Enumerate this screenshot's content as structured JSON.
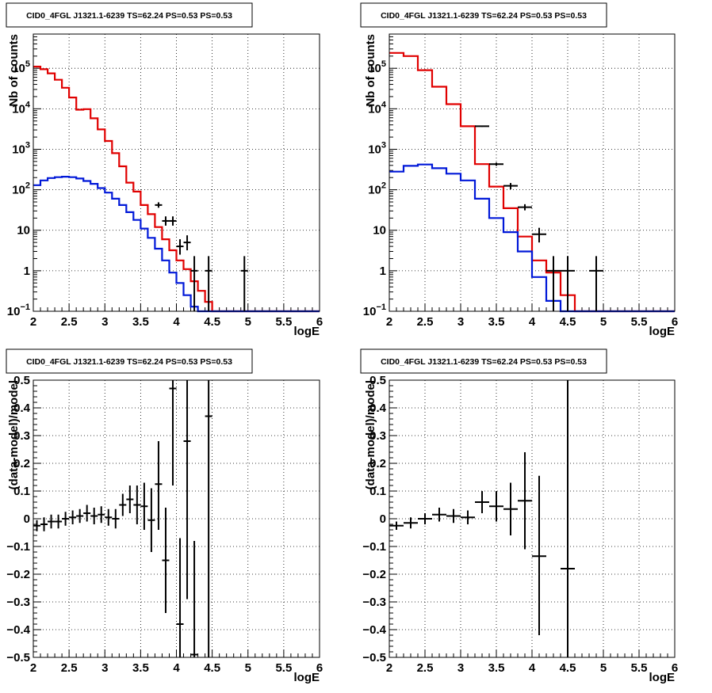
{
  "colors": {
    "model": "#e00000",
    "component": "#0018d8",
    "data": "#000000",
    "frame": "#000000"
  },
  "chart_data": [
    {
      "type": "line",
      "panel": "top-left",
      "title": "CID0_4FGL J1321.1-6239 TS=62.24 PS=0.53 PS=0.53",
      "xlabel": "logE",
      "ylabel": "Nb of counts",
      "xlim": [
        2,
        6
      ],
      "ylim": [
        0.1,
        700000
      ],
      "yscale": "log",
      "grid": true,
      "xticks": [
        "2",
        "2.5",
        "3",
        "3.5",
        "4",
        "4.5",
        "5",
        "5.5",
        "6"
      ],
      "yticks": [
        {
          "v": 0.1,
          "label": "10",
          "sup": "−1"
        },
        {
          "v": 1,
          "label": "1",
          "sup": ""
        },
        {
          "v": 10,
          "label": "10",
          "sup": ""
        },
        {
          "v": 100,
          "label": "10",
          "sup": "2"
        },
        {
          "v": 1000,
          "label": "10",
          "sup": "3"
        },
        {
          "v": 10000,
          "label": "10",
          "sup": "4"
        },
        {
          "v": 100000,
          "label": "10",
          "sup": "5"
        }
      ],
      "bin_edges": [
        2.0,
        2.1,
        2.2,
        2.3,
        2.4,
        2.5,
        2.6,
        2.7,
        2.8,
        2.9,
        3.0,
        3.1,
        3.2,
        3.3,
        3.4,
        3.5,
        3.6,
        3.7,
        3.8,
        3.9,
        4.0,
        4.1,
        4.2,
        4.3,
        4.4,
        4.5,
        4.6,
        4.7,
        4.8,
        4.9,
        5.0,
        5.1,
        5.2,
        5.3,
        5.4,
        5.5,
        5.6,
        5.7,
        5.8,
        5.9,
        6.0
      ],
      "series": [
        {
          "role": "model",
          "values": [
            110000,
            95000,
            75000,
            52000,
            33000,
            19000,
            9500,
            9800,
            5800,
            3100,
            1600,
            800,
            380,
            150,
            90,
            42,
            25,
            12,
            6,
            3.2,
            1.8,
            1.1,
            0.55,
            0.32,
            0.17,
            0.1,
            0.1,
            0.1,
            0.1,
            0.1,
            0.1,
            0.1,
            0.1,
            0.1,
            0.1,
            0.1,
            0.1,
            0.1,
            0.1,
            0.1
          ]
        },
        {
          "role": "component",
          "values": [
            130,
            170,
            195,
            205,
            210,
            205,
            190,
            165,
            140,
            110,
            85,
            60,
            42,
            28,
            18,
            11,
            6.5,
            3.5,
            1.8,
            0.9,
            0.5,
            0.25,
            0.13,
            0.1,
            0.1,
            0.1,
            0.1,
            0.1,
            0.1,
            0.1,
            0.1,
            0.1,
            0.1,
            0.1,
            0.1,
            0.1,
            0.1,
            0.1,
            0.1,
            0.1
          ]
        }
      ],
      "points": [
        {
          "x": 3.75,
          "y": 42,
          "lo": 36,
          "hi": 49,
          "xerr": 0.05
        },
        {
          "x": 3.85,
          "y": 17,
          "lo": 13,
          "hi": 22,
          "xerr": 0.05
        },
        {
          "x": 3.95,
          "y": 17,
          "lo": 13,
          "hi": 22,
          "xerr": 0.05
        },
        {
          "x": 4.05,
          "y": 4,
          "lo": 2.5,
          "hi": 6,
          "xerr": 0.05
        },
        {
          "x": 4.15,
          "y": 5,
          "lo": 3.2,
          "hi": 7.5,
          "xerr": 0.05
        },
        {
          "x": 4.25,
          "y": 1,
          "lo": 0.1,
          "hi": 2.3,
          "xerr": 0.05
        },
        {
          "x": 4.45,
          "y": 1,
          "lo": 0.1,
          "hi": 2.3,
          "xerr": 0.05
        },
        {
          "x": 4.95,
          "y": 1,
          "lo": 0.1,
          "hi": 2.3,
          "xerr": 0.05
        }
      ]
    },
    {
      "type": "line",
      "panel": "top-right",
      "title": "CID0_4FGL J1321.1-6239 TS=62.24 PS=0.53 PS=0.53",
      "xlabel": "logE",
      "ylabel": "Nb of counts",
      "xlim": [
        2,
        6
      ],
      "ylim": [
        0.1,
        700000
      ],
      "yscale": "log",
      "grid": true,
      "xticks": [
        "2",
        "2.5",
        "3",
        "3.5",
        "4",
        "4.5",
        "5",
        "5.5",
        "6"
      ],
      "yticks": [
        {
          "v": 0.1,
          "label": "10",
          "sup": "−1"
        },
        {
          "v": 1,
          "label": "1",
          "sup": ""
        },
        {
          "v": 10,
          "label": "10",
          "sup": ""
        },
        {
          "v": 100,
          "label": "10",
          "sup": "2"
        },
        {
          "v": 1000,
          "label": "10",
          "sup": "3"
        },
        {
          "v": 10000,
          "label": "10",
          "sup": "4"
        },
        {
          "v": 100000,
          "label": "10",
          "sup": "5"
        }
      ],
      "bin_edges": [
        2.0,
        2.2,
        2.4,
        2.6,
        2.8,
        3.0,
        3.2,
        3.4,
        3.6,
        3.8,
        4.0,
        4.2,
        4.4,
        4.6,
        4.8,
        5.0,
        5.2,
        5.4,
        5.6,
        5.8,
        6.0
      ],
      "series": [
        {
          "role": "model",
          "values": [
            240000,
            200000,
            90000,
            35000,
            13000,
            3700,
            430,
            120,
            35,
            7,
            1.8,
            0.9,
            0.25,
            0.1,
            0.1,
            0.1,
            0.1,
            0.1,
            0.1,
            0.1
          ]
        },
        {
          "role": "component",
          "values": [
            280,
            390,
            420,
            340,
            250,
            170,
            60,
            20,
            9,
            3,
            0.7,
            0.18,
            0.1,
            0.1,
            0.1,
            0.1,
            0.1,
            0.1,
            0.1,
            0.1
          ]
        }
      ],
      "points": [
        {
          "x": 3.3,
          "y": 3700,
          "lo": 3580,
          "hi": 3820,
          "xerr": 0.1
        },
        {
          "x": 3.5,
          "y": 430,
          "lo": 390,
          "hi": 470,
          "xerr": 0.1
        },
        {
          "x": 3.7,
          "y": 125,
          "lo": 103,
          "hi": 147,
          "xerr": 0.1
        },
        {
          "x": 3.9,
          "y": 37,
          "lo": 31,
          "hi": 44,
          "xerr": 0.1
        },
        {
          "x": 4.1,
          "y": 8,
          "lo": 5,
          "hi": 11.5,
          "xerr": 0.1
        },
        {
          "x": 4.3,
          "y": 1,
          "lo": 0.1,
          "hi": 2.3,
          "xerr": 0.1
        },
        {
          "x": 4.5,
          "y": 1,
          "lo": 0.1,
          "hi": 2.3,
          "xerr": 0.1
        },
        {
          "x": 4.9,
          "y": 1,
          "lo": 0.1,
          "hi": 2.3,
          "xerr": 0.1
        }
      ]
    },
    {
      "type": "scatter",
      "panel": "bottom-left",
      "title": "CID0_4FGL J1321.1-6239 TS=62.24 PS=0.53 PS=0.53",
      "xlabel": "logE",
      "ylabel": "(data-model)/model",
      "xlim": [
        2,
        6
      ],
      "ylim": [
        -0.5,
        0.5
      ],
      "yscale": "linear",
      "grid": true,
      "xticks": [
        "2",
        "2.5",
        "3",
        "3.5",
        "4",
        "4.5",
        "5",
        "5.5",
        "6"
      ],
      "yticks": [
        {
          "v": -0.5,
          "label": "−0.5",
          "sup": ""
        },
        {
          "v": -0.4,
          "label": "−0.4",
          "sup": ""
        },
        {
          "v": -0.3,
          "label": "−0.3",
          "sup": ""
        },
        {
          "v": -0.2,
          "label": "−0.2",
          "sup": ""
        },
        {
          "v": -0.1,
          "label": "−0.1",
          "sup": ""
        },
        {
          "v": 0,
          "label": "0",
          "sup": ""
        },
        {
          "v": 0.1,
          "label": "0.1",
          "sup": ""
        },
        {
          "v": 0.2,
          "label": "0.2",
          "sup": ""
        },
        {
          "v": 0.3,
          "label": "0.3",
          "sup": ""
        },
        {
          "v": 0.4,
          "label": "0.4",
          "sup": ""
        },
        {
          "v": 0.5,
          "label": "0.5",
          "sup": ""
        }
      ],
      "points": [
        {
          "x": 2.05,
          "y": -0.025,
          "lo": -0.045,
          "hi": -0.005,
          "xerr": 0.05
        },
        {
          "x": 2.15,
          "y": -0.02,
          "lo": -0.045,
          "hi": 0.005,
          "xerr": 0.05
        },
        {
          "x": 2.25,
          "y": -0.01,
          "lo": -0.035,
          "hi": 0.015,
          "xerr": 0.05
        },
        {
          "x": 2.35,
          "y": -0.01,
          "lo": -0.035,
          "hi": 0.015,
          "xerr": 0.05
        },
        {
          "x": 2.45,
          "y": 0.0,
          "lo": -0.025,
          "hi": 0.025,
          "xerr": 0.05
        },
        {
          "x": 2.55,
          "y": 0.005,
          "lo": -0.02,
          "hi": 0.03,
          "xerr": 0.05
        },
        {
          "x": 2.65,
          "y": 0.01,
          "lo": -0.015,
          "hi": 0.035,
          "xerr": 0.05
        },
        {
          "x": 2.75,
          "y": 0.02,
          "lo": -0.01,
          "hi": 0.05,
          "xerr": 0.05
        },
        {
          "x": 2.85,
          "y": 0.01,
          "lo": -0.02,
          "hi": 0.04,
          "xerr": 0.05
        },
        {
          "x": 2.95,
          "y": 0.015,
          "lo": -0.015,
          "hi": 0.045,
          "xerr": 0.05
        },
        {
          "x": 3.05,
          "y": 0.005,
          "lo": -0.025,
          "hi": 0.035,
          "xerr": 0.05
        },
        {
          "x": 3.15,
          "y": 0.0,
          "lo": -0.035,
          "hi": 0.035,
          "xerr": 0.05
        },
        {
          "x": 3.25,
          "y": 0.05,
          "lo": 0.01,
          "hi": 0.09,
          "xerr": 0.05
        },
        {
          "x": 3.35,
          "y": 0.07,
          "lo": 0.02,
          "hi": 0.12,
          "xerr": 0.05
        },
        {
          "x": 3.45,
          "y": 0.05,
          "lo": -0.02,
          "hi": 0.12,
          "xerr": 0.05
        },
        {
          "x": 3.55,
          "y": 0.045,
          "lo": -0.04,
          "hi": 0.13,
          "xerr": 0.05
        },
        {
          "x": 3.65,
          "y": -0.005,
          "lo": -0.12,
          "hi": 0.11,
          "xerr": 0.05
        },
        {
          "x": 3.75,
          "y": 0.125,
          "lo": -0.04,
          "hi": 0.28,
          "xerr": 0.05
        },
        {
          "x": 3.85,
          "y": -0.15,
          "lo": -0.34,
          "hi": 0.04,
          "xerr": 0.05
        },
        {
          "x": 3.95,
          "y": 0.47,
          "lo": 0.12,
          "hi": 0.5,
          "xerr": 0.05
        },
        {
          "x": 4.05,
          "y": -0.38,
          "lo": -0.5,
          "hi": -0.07,
          "xerr": 0.05
        },
        {
          "x": 4.15,
          "y": 0.28,
          "lo": -0.29,
          "hi": 0.5,
          "xerr": 0.05
        },
        {
          "x": 4.25,
          "y": -0.49,
          "lo": -0.5,
          "hi": -0.08,
          "xerr": 0.05
        },
        {
          "x": 4.45,
          "y": 0.37,
          "lo": -0.5,
          "hi": 0.5,
          "xerr": 0.05
        }
      ]
    },
    {
      "type": "scatter",
      "panel": "bottom-right",
      "title": "CID0_4FGL J1321.1-6239 TS=62.24 PS=0.53 PS=0.53",
      "xlabel": "logE",
      "ylabel": "(data-model)/model",
      "xlim": [
        2,
        6
      ],
      "ylim": [
        -0.5,
        0.5
      ],
      "yscale": "linear",
      "grid": true,
      "xticks": [
        "2",
        "2.5",
        "3",
        "3.5",
        "4",
        "4.5",
        "5",
        "5.5",
        "6"
      ],
      "yticks": [
        {
          "v": -0.5,
          "label": "−0.5",
          "sup": ""
        },
        {
          "v": -0.4,
          "label": "−0.4",
          "sup": ""
        },
        {
          "v": -0.3,
          "label": "−0.3",
          "sup": ""
        },
        {
          "v": -0.2,
          "label": "−0.2",
          "sup": ""
        },
        {
          "v": -0.1,
          "label": "−0.1",
          "sup": ""
        },
        {
          "v": 0,
          "label": "0",
          "sup": ""
        },
        {
          "v": 0.1,
          "label": "0.1",
          "sup": ""
        },
        {
          "v": 0.2,
          "label": "0.2",
          "sup": ""
        },
        {
          "v": 0.3,
          "label": "0.3",
          "sup": ""
        },
        {
          "v": 0.4,
          "label": "0.4",
          "sup": ""
        },
        {
          "v": 0.5,
          "label": "0.5",
          "sup": ""
        }
      ],
      "points": [
        {
          "x": 2.1,
          "y": -0.025,
          "lo": -0.04,
          "hi": -0.01,
          "xerr": 0.1
        },
        {
          "x": 2.3,
          "y": -0.015,
          "lo": -0.035,
          "hi": 0.005,
          "xerr": 0.1
        },
        {
          "x": 2.5,
          "y": 0.0,
          "lo": -0.02,
          "hi": 0.02,
          "xerr": 0.1
        },
        {
          "x": 2.7,
          "y": 0.015,
          "lo": -0.01,
          "hi": 0.04,
          "xerr": 0.1
        },
        {
          "x": 2.9,
          "y": 0.01,
          "lo": -0.015,
          "hi": 0.035,
          "xerr": 0.1
        },
        {
          "x": 3.1,
          "y": 0.005,
          "lo": -0.02,
          "hi": 0.03,
          "xerr": 0.1
        },
        {
          "x": 3.3,
          "y": 0.06,
          "lo": 0.02,
          "hi": 0.1,
          "xerr": 0.1
        },
        {
          "x": 3.5,
          "y": 0.045,
          "lo": -0.01,
          "hi": 0.1,
          "xerr": 0.1
        },
        {
          "x": 3.7,
          "y": 0.035,
          "lo": -0.06,
          "hi": 0.13,
          "xerr": 0.1
        },
        {
          "x": 3.9,
          "y": 0.065,
          "lo": -0.11,
          "hi": 0.24,
          "xerr": 0.1
        },
        {
          "x": 4.1,
          "y": -0.135,
          "lo": -0.42,
          "hi": 0.155,
          "xerr": 0.1
        },
        {
          "x": 4.5,
          "y": -0.18,
          "lo": -0.5,
          "hi": 0.5,
          "xerr": 0.1
        }
      ]
    }
  ]
}
